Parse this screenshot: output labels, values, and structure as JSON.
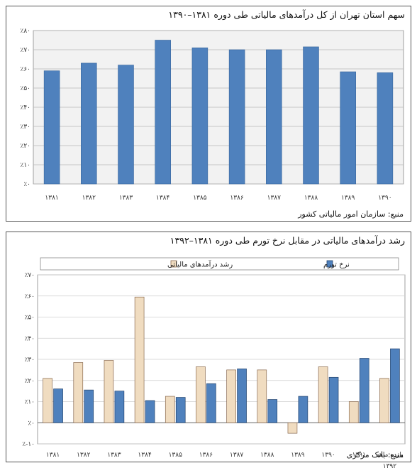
{
  "chart_data": [
    {
      "type": "bar",
      "title": "سهم استان تهران از کل درآمدهای مالیاتی طی دوره ۱۳۸۱–۱۳۹۰",
      "source": "منبع: سازمان امور مالیاتی کشور",
      "categories": [
        "۱۳۸۱",
        "۱۳۸۲",
        "۱۳۸۳",
        "۱۳۸۴",
        "۱۳۸۵",
        "۱۳۸۶",
        "۱۳۸۷",
        "۱۳۸۸",
        "۱۳۸۹",
        "۱۳۹۰"
      ],
      "values": [
        59,
        63,
        62,
        75,
        71,
        70,
        70,
        71.5,
        58.5,
        58
      ],
      "ylim": [
        0,
        80
      ],
      "yticks": [
        "٪۰",
        "٪۱۰",
        "٪۲۰",
        "٪۳۰",
        "٪۴۰",
        "٪۵۰",
        "٪۶۰",
        "٪۷۰",
        "٪۸۰"
      ],
      "grid": true,
      "colors": {
        "bar": "#4f81bd",
        "plot_bg": "#f2f2f2"
      }
    },
    {
      "type": "bar",
      "title": "رشد درآمدهای مالیاتی در مقابل نرخ تورم طی دوره ۱۳۸۱–۱۳۹۲",
      "source": "منبع: بانک مرکزی",
      "categories": [
        "۱۳۸۱",
        "۱۳۸۲",
        "۱۳۸۳",
        "۱۳۸۴",
        "۱۳۸۵",
        "۱۳۸۶",
        "۱۳۸۷",
        "۱۳۸۸",
        "۱۳۸۹",
        "۱۳۹۰",
        "۱۳۹۱",
        "یازده ماهه ۱۳۹۲"
      ],
      "series": [
        {
          "name": "رشد درآمدهای مالیاتی",
          "values": [
            21,
            28.5,
            29.5,
            59.5,
            12.5,
            26.5,
            25,
            25,
            -5,
            26.5,
            10,
            21
          ],
          "color": "#f0dcc0",
          "stroke": "#8a6a50"
        },
        {
          "name": "نرخ تورم",
          "values": [
            16,
            15.5,
            15,
            10.5,
            12,
            18.5,
            25.5,
            11,
            12.5,
            21.5,
            30.5,
            35
          ],
          "color": "#4f81bd",
          "stroke": "#24446e"
        }
      ],
      "ylim": [
        -10,
        70
      ],
      "yticks": [
        "٪-۱۰",
        "٪۰",
        "٪۱۰",
        "٪۲۰",
        "٪۳۰",
        "٪۴۰",
        "٪۵۰",
        "٪۶۰",
        "٪۷۰"
      ],
      "grid": true,
      "legend": "top"
    }
  ]
}
